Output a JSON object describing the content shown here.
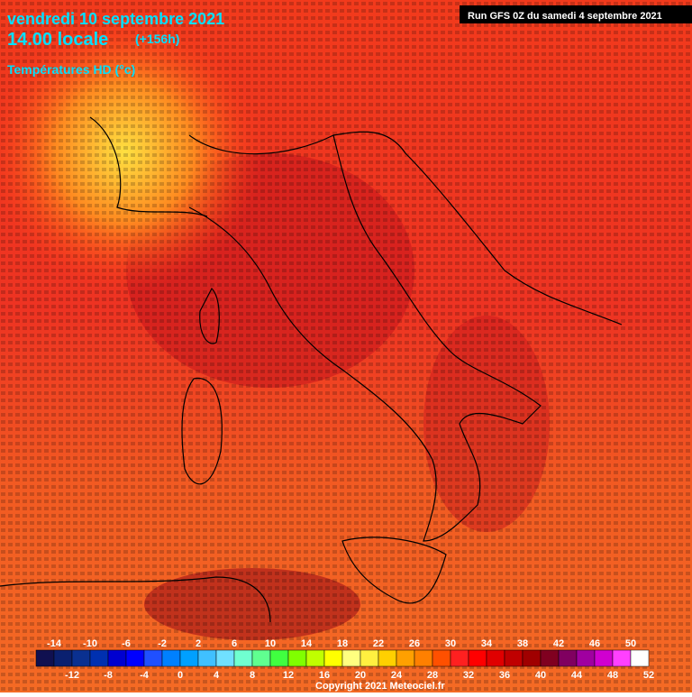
{
  "header": {
    "date": "vendredi 10 septembre 2021",
    "time": "14.00 locale",
    "lead": "(+156h)",
    "parameter": "Températures HD (°c)",
    "run": "Run GFS 0Z du samedi 4 septembre 2021"
  },
  "legend": {
    "colors": [
      "#101050",
      "#0a2070",
      "#0a3090",
      "#0030b0",
      "#0000d0",
      "#0000ff",
      "#2050ff",
      "#0080ff",
      "#00a0ff",
      "#40c0ff",
      "#70e0ff",
      "#70ffd0",
      "#60ff90",
      "#40ff40",
      "#80ff00",
      "#c0ff00",
      "#ffff00",
      "#ffff80",
      "#fff040",
      "#ffd000",
      "#ffa000",
      "#ff8000",
      "#ff5000",
      "#ff2020",
      "#ff0000",
      "#e00000",
      "#c00000",
      "#a00000",
      "#800020",
      "#800060",
      "#a000a0",
      "#d000d0",
      "#ff40ff",
      "#ffffff"
    ],
    "top_labels": [
      -14,
      -10,
      -6,
      -2,
      2,
      6,
      10,
      14,
      18,
      22,
      26,
      30,
      34,
      38,
      42,
      46,
      50
    ],
    "bottom_labels": [
      -12,
      -8,
      -4,
      0,
      4,
      8,
      12,
      16,
      20,
      24,
      28,
      32,
      36,
      40,
      44,
      48,
      52
    ]
  },
  "footer": {
    "copyright": "Copyright 2021 Meteociel.fr"
  }
}
